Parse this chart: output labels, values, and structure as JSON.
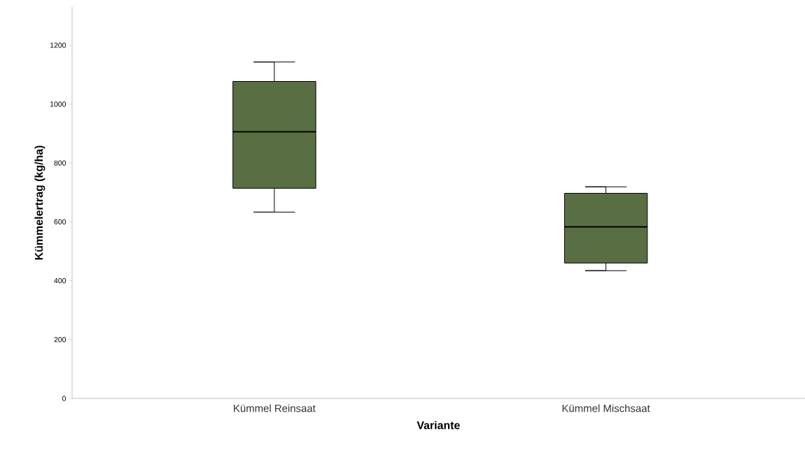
{
  "chart_data": {
    "type": "box",
    "xlabel": "Variante",
    "ylabel": "Kümmelertrag (kg/ha)",
    "categories": [
      "Kümmel Reinsaat",
      "Kümmel Mischsaat"
    ],
    "boxes": [
      {
        "low": 633,
        "q1": 714,
        "median": 906,
        "q3": 1077,
        "high": 1143
      },
      {
        "low": 434,
        "q1": 460,
        "median": 583,
        "q3": 697,
        "high": 719
      }
    ],
    "color": "#5a6e44",
    "ylim": [
      0,
      1330
    ],
    "yticks": [
      0,
      200,
      400,
      600,
      800,
      1000,
      1200
    ]
  }
}
